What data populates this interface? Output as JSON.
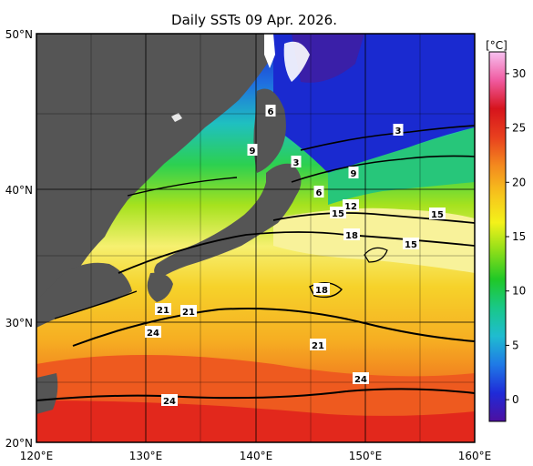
{
  "map": {
    "title": "Daily SSTs 09 Apr. 2026.",
    "lat_labels": [
      "50°N",
      "40°N",
      "30°N",
      "20°N"
    ],
    "lon_labels": [
      "120°E",
      "130°E",
      "140°E",
      "150°E",
      "160°E"
    ],
    "lat_range": [
      20,
      50
    ],
    "lon_range": [
      120,
      160
    ],
    "grid": true
  },
  "colorbar": {
    "unit": "[°C]",
    "ticks": [
      "30",
      "25",
      "20",
      "15",
      "10",
      "5",
      "0"
    ],
    "range": [
      -2,
      32
    ],
    "colors": [
      "#4d0fa0",
      "#1f2bd8",
      "#1f7ae6",
      "#1fbcd0",
      "#19c888",
      "#20c826",
      "#8ede19",
      "#f4f21a",
      "#f6c41c",
      "#f48a1e",
      "#e8401e",
      "#d6141c",
      "#f05aa0",
      "#f7c1f0"
    ]
  },
  "isotherm_labels": [
    "6",
    "9",
    "3",
    "3",
    "9",
    "6",
    "12",
    "15",
    "18",
    "15",
    "15",
    "18",
    "21",
    "21",
    "24",
    "21",
    "24",
    "24"
  ]
}
